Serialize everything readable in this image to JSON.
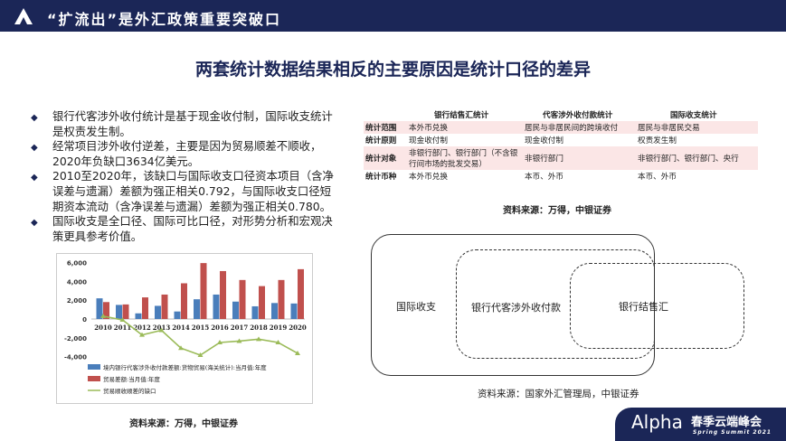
{
  "header": {
    "title": "“扩流出”是外汇政策重要突破口",
    "logo_icon": "alpha-triangle-icon"
  },
  "main_title": "两套统计数据结果相反的主要原因是统计口径的差异",
  "bullets": [
    "银行代客涉外收付统计是基于现金收付制，国际收支统计是权责发生制。",
    "经常项目涉外收付逆差，主要是因为贸易顺差不顺收，2020年负缺口3634亿美元。",
    "2010至2020年，该缺口与国际收支口径资本项目（含净误差与遗漏）差额为强正相关0.792，与国际收支口径短期资本流动（含净误差与遗漏）差额为强正相关0.780。",
    "国际收支是全口径、国际可比口径，对形势分析和宏观决策更具参考价值。"
  ],
  "chart_data": {
    "type": "bar",
    "categories": [
      "2010",
      "2011",
      "2012",
      "2013",
      "2014",
      "2015",
      "2016",
      "2017",
      "2018",
      "2019",
      "2020"
    ],
    "yticks": [
      "6,000",
      "4,000",
      "2,000",
      "0",
      "-2,000",
      "-4,000"
    ],
    "ylim": [
      -4000,
      6000
    ],
    "series": [
      {
        "name": "境内银行代客涉外收付款差额:货物贸易(海关统计):当月值:年度",
        "type": "bar",
        "color": "#4a7ebb",
        "values": [
          2200,
          1500,
          600,
          1400,
          800,
          2100,
          2600,
          1850,
          1350,
          1700,
          1650
        ]
      },
      {
        "name": "贸易差额:当月值:年度",
        "type": "bar",
        "color": "#c0504d",
        "values": [
          1800,
          1550,
          2300,
          2600,
          3800,
          5950,
          5100,
          4150,
          3500,
          4150,
          5300
        ]
      },
      {
        "name": "贸易顺收顺差的缺口",
        "type": "line",
        "color": "#9bbb59",
        "values": [
          300,
          -100,
          -1700,
          -1200,
          -3100,
          -3850,
          -2500,
          -2350,
          -2150,
          -2500,
          -3650
        ]
      }
    ],
    "legend": "bottom"
  },
  "chart_source": "资料来源：万得，中银证券",
  "table": {
    "headers": [
      "",
      "银行结售汇统计",
      "代客涉外收付款统计",
      "国际收支统计"
    ],
    "rows": [
      [
        "统计范围",
        "本外币兑换",
        "居民与非居民间的跨境收付",
        "居民与非居民交易"
      ],
      [
        "统计原则",
        "现金收付制",
        "现金收付制",
        "权责发生制"
      ],
      [
        "统计对象",
        "非银行部门、银行部门（不含银行间市场的批发交易）",
        "非银行部门",
        "非银行部门、银行部门、央行"
      ],
      [
        "统计币种",
        "本外币兑换",
        "本币、外币",
        "本币、外币"
      ]
    ],
    "source": "资料来源：万得，中银证券"
  },
  "venn": {
    "outer": "国际收支",
    "middle": "银行代客涉外收付款",
    "inner": "银行结售汇",
    "source": "资料来源：国家外汇管理局，中银证券"
  },
  "footer": {
    "brand": "Alpha",
    "cn": "春季云端峰会",
    "en": "Spring Summit 2021"
  }
}
